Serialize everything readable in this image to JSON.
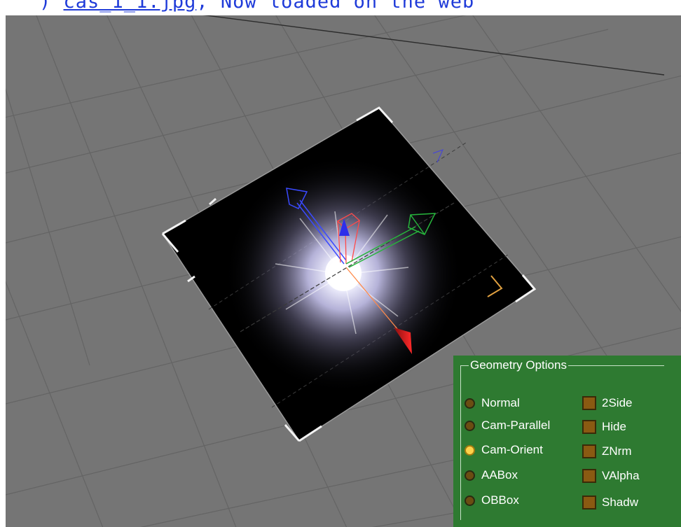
{
  "browser_strip": {
    "text_before": ") ",
    "link_text": "cas_1_1.jpg",
    "text_after": ", Now loaded on the web"
  },
  "viewport": {
    "background_color": "#757575",
    "grid_color": "#636363",
    "plane_color": "#000000",
    "glow_color": "#d9d9ff",
    "gizmo_x_color": "#ff3a2a",
    "gizmo_y_color": "#27b43c",
    "gizmo_z_color": "#3a4aff",
    "selection_bracket_color": "#f0f0f0"
  },
  "geometry_options": {
    "title": "Geometry Options",
    "background_color": "#2e7a31",
    "modes": [
      {
        "label": "Normal",
        "selected": false
      },
      {
        "label": "Cam-Parallel",
        "selected": false
      },
      {
        "label": "Cam-Orient",
        "selected": true
      },
      {
        "label": "AABox",
        "selected": false
      },
      {
        "label": "OBBox",
        "selected": false
      }
    ],
    "flags": [
      {
        "label": "2Side",
        "checked": false
      },
      {
        "label": "Hide",
        "checked": false
      },
      {
        "label": "ZNrm",
        "checked": false
      },
      {
        "label": "VAlpha",
        "checked": false
      },
      {
        "label": "Shadw",
        "checked": false
      }
    ]
  }
}
